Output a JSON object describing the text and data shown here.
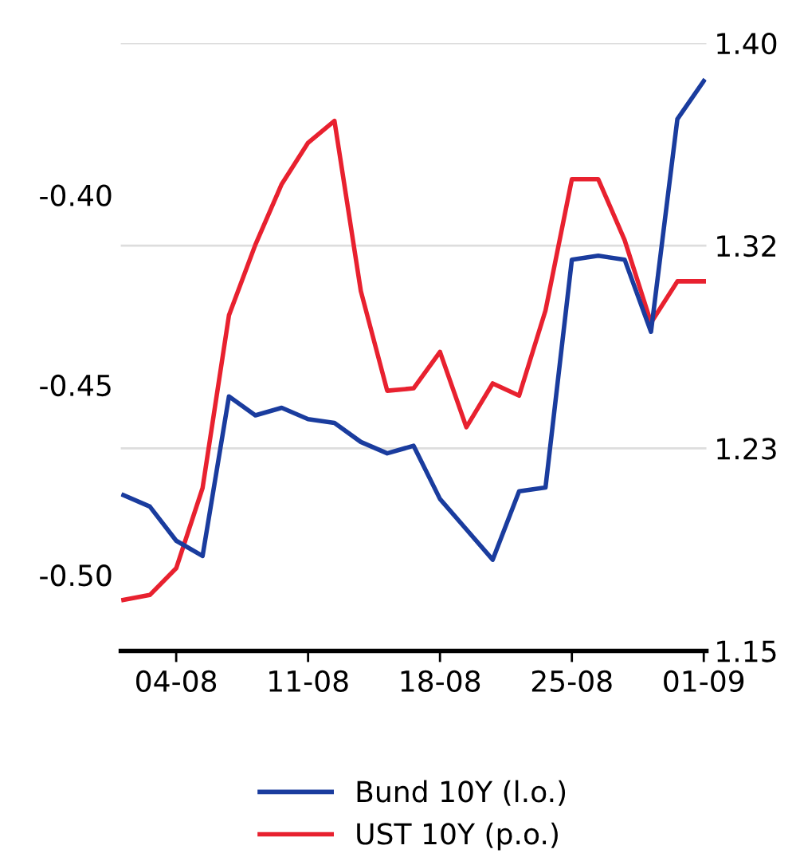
{
  "chart_data": {
    "type": "line",
    "categories": [
      null,
      null,
      "04-08",
      null,
      null,
      null,
      null,
      "11-08",
      null,
      null,
      null,
      null,
      "18-08",
      null,
      null,
      null,
      null,
      "25-08",
      null,
      null,
      null,
      null,
      "01-09"
    ],
    "series": [
      {
        "name": "Bund 10Y (l.o.)",
        "color": "#1a3c9e",
        "values": [
          -0.479,
          -0.482,
          -0.491,
          -0.495,
          -0.453,
          -0.458,
          -0.456,
          -0.459,
          -0.46,
          -0.465,
          -0.468,
          -0.466,
          -0.48,
          -0.488,
          -0.496,
          -0.478,
          -0.477,
          -0.417,
          -0.416,
          -0.417,
          -0.436,
          -0.38,
          -0.37
        ]
      },
      {
        "name": "UST 10Y (p.o.)",
        "color": "#e8212f",
        "axis": "y2",
        "values": [
          1.171,
          1.173,
          1.184,
          1.217,
          1.288,
          1.317,
          1.342,
          1.359,
          1.368,
          1.298,
          1.257,
          1.258,
          1.273,
          1.242,
          1.26,
          1.255,
          1.29,
          1.344,
          1.344,
          1.319,
          1.285,
          1.302,
          1.302
        ]
      }
    ],
    "ylim": [
      -0.52,
      -0.36
    ],
    "yticks": [
      {
        "value": -0.5,
        "label": "-0.50"
      },
      -0.45,
      {
        "value": -0.4,
        "label": "-0.40"
      }
    ],
    "y2lim": [
      1.15,
      1.4
    ],
    "y2ticks": [
      {
        "value": 1.15,
        "label": "1.15"
      },
      {
        "value": 1.2333,
        "label": "1.23"
      },
      {
        "value": 1.3167,
        "label": "1.32"
      },
      {
        "value": 1.4,
        "label": "1.40"
      }
    ],
    "grid": "y",
    "legend": "bottom",
    "marker": "none",
    "line_style": "solid"
  }
}
